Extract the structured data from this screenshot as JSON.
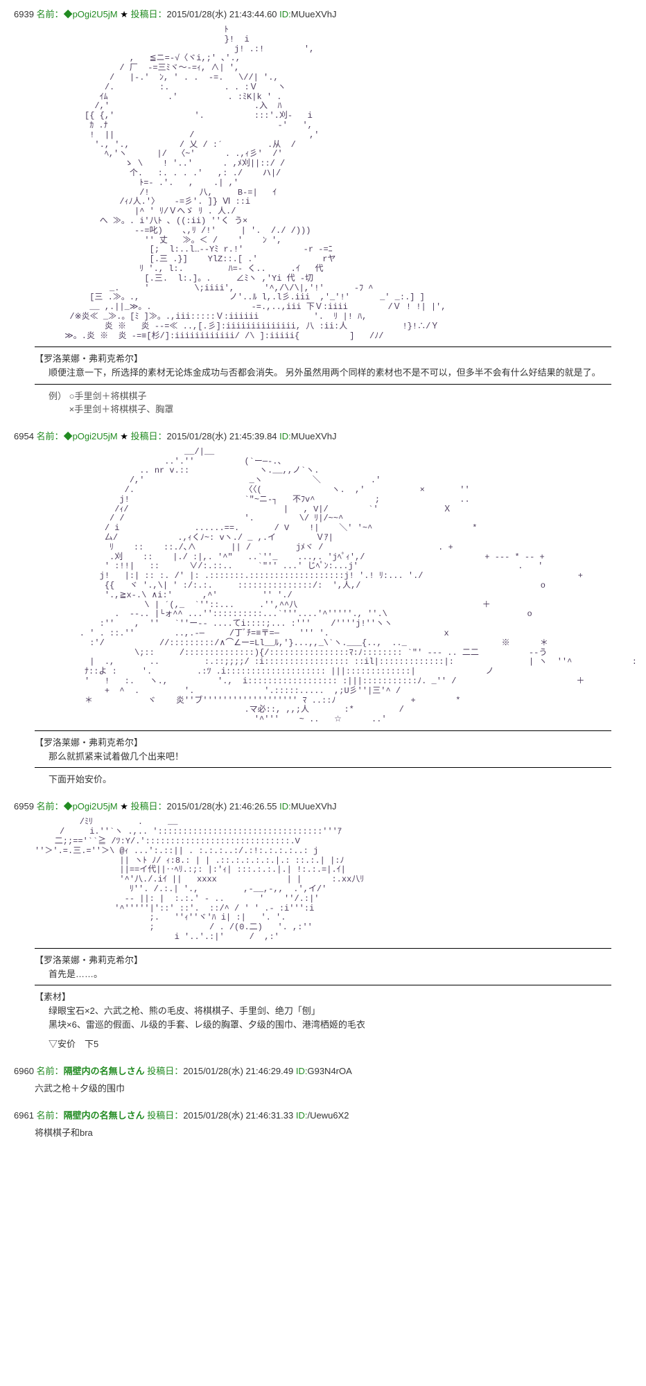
{
  "posts": [
    {
      "no": "6939",
      "name_label": "名前：",
      "trip": "◆pOgi2U5jM",
      "star": "★",
      "date_label": "投稿日：",
      "date": "2015/01/28(水) 21:43:44.60",
      "id_label": "ID:",
      "id": "MUueXVhJ",
      "ascii": "                                      ﾄ\n                                      }!  i\n                                        j! .:!        ',\n                   ,   ≦ニ=-√〈ヾi,;' ､'.,\n                 / 厂  -=三ﾐヾ〜-=ｨ, ∧| ',\n               /   |-.'  ﾝ, ' . .  -=.   \\//| '.,\n              /.         :.           . . :Ｖ    ヽ\n             ｲﾑ            .'          . :ﾐΚ|k ' .\n            /,'                             .入  ﾊ\n          [{ {,'                '.          :::'.刈-   i\n           ｶ .ﾅ                                  -'   ',\n           !  ||               /                       ,'\n            '., '.,          / 乂 / :´         .从  /\n              ﾍ,'ヽ      |/  〈~'      . .,ｨ彡'  /'\n                  ゝ \\    ! '..'      . ,ﾒ刈||::/ /\n                   个.   :. . . .'   ,: ./    ハ|/\n                     ﾄ=- .'.   ,    .| ,'\n                     /!          八,     B-=|   ｲ\n                 /ｨﾉ人.'〉   -=彡'. ]} Ⅵ ::i\n                    |^ ' ﾘ/Ｖへゞ ﾘ . 人./\n             へ ≫。. i'八ﾄ ､ ((:ii) ''く う×\n                    --=叱)    ､,ﾘ /!'     | '.  /./ /)))\n                      '' 丈   ≫。＜ /    '    ﾝ ',\n                       [;  l:..l…--Yﾐ r.!'            -r -=ﾆ\n                       [.三 .}]    YlZ::.[ .'             rヤ\n                     ﾘ '., l:.         ﾊ=- く..     .ｲ   代\n                      [.三.  l:.]。.     ∠ﾐヽ ,'Yi 代 -切\n               _.     '         \\;iiii',      '^,/\\/\\|,'!'      -ﾌ ^\n           [三 .≫。.,                  ノ'..ﾙ l,.l彡.iii  ,'_'!'      _' _:.] ]\n           __ ,.||_≫。.                    -=.,..,iii 下Ｖ:iiii        /Ｖ ! !| |',\n       /※炎≪ _≫.。[ﾐ ]≫。.,iii:::::Ｖ:iiiiii           '.  ﾘ |! ﾊ,\n              炎 ※   炎 --=≪ ..,[.彡]:iiiiiiiiiiiiii, 八 :ii:人           !}!∴/Ｙ\n      ≫。.炎 ※  炎 -=≡[杉/]:iiiiiiiiiiii/ /\\ ]:iiiii{          ]   /ﾉ/",
      "speaker": "【罗洛莱娜・弗莉克希尔】",
      "dialogue": "顺便注意一下，所选择的素材无论炼金成功与否都会消失。\n另外虽然用两个同样的素材也不是不可以，但多半不会有什么好结果的就是了。",
      "example_label": "例）",
      "example": "○手里剑＋将棋棋子\n×手里剑＋将棋棋子、胸罩"
    },
    {
      "no": "6954",
      "name_label": "名前：",
      "trip": "◆pOgi2U5jM",
      "star": "★",
      "date_label": "投稿日：",
      "date": "2015/01/28(水) 21:45:39.84",
      "id_label": "ID:",
      "id": "MUueXVhJ",
      "ascii": "                              __/|__\n                          ..'.''          (`ー─-.、\n                     .. nr v.::              ヽ.__,,ノ`ヽ.\n                   /,'                     _ヽ          ＼          .'\n                  /.                      〈〈(              ヽ.  ,'           ×       ''\n                 j!                       `\"~ニ-┐   不ﾌv^            ;                ..\n                /ｨ/                               |   , V|/        `'             Ｘ\n               / /                        '.         \\/ ﾘ|/~~^\n              / i               ......==.       / V    !|    ＼' '~^                    *\n              厶/            .,ｨくﾉ~: vヽ./ _ ,.イ        Ｖｱ|\n               ﾘ    ::    ::./､∧       || /         jﾒヾ /                       . +\n               .刈    ::    |./ :|,. '^\"   ..`''_    ...,. 'jﾍﾟｨ',/                        + --- * -- +\n              ' :!!|   ::      ∨/:.::..     `\"'' ...' じﾍﾟﾝ:...j'                                .   '\n             j!   |:| :: :. /' |: .:::::::.:::::::::::::::::::j! '.! ﾘ:... './                               +\n              {{   ヾ '.,\\| ' :/:.:.     :::::::::::::::/:  ',人,/                                    o\n              '.,≧x-.\\ ∧i:'      ,^'         '' './\n                      \\ | ´(,_  `''::...     .'',^^八                                     ＋\n                .  --.. |└ォ^^ ...''::::::::::...`'''....'^'''''., ''.\\                            o\n             :''    ,  ''   `''ー-- ....てi::::;... :'''    /''''j!''ヽヽ\n         . ' . ::.''        ..,.-─     /丁ﾞﾁ=≡〒=─    ''' '.                       x\n           :'/           //:::::::::/∧⌒∠ー=Ll__ﾙ,'}...,,_\\`ヽ.___{..,  .._                   ※      ＊\n                    \\;::     /::::::::::::::){/::::::::::::::::ﾏ:ﾉ:::::::: `\"' --- .. 二二          --う\n           |  .,       ..         :.::;;;;/ :i::::::::::::::::: ::il|:::::::::::::|:               | ヽ  ''^            :  *\n          ﾅ::よ :     '.         .:ﾂ .i:::::::::::::::::::: |||:::::::::::::|              ノ\n          '   !   :.   ヽ.,          '.,  i:::::::::::::::::: :|||:::::::::::ﾉ. _'' /                        ＋\n              +  ^  .         '.              '.:::::.....  ,;U彡''|三'^ /\n          ＊           ヾ    炎''ブ''''''''''''''''''' ﾏ ..::ﾉ               +        *\n                                          .マ必::, ,,;人       :*         /\n                                            '^'''    ~ ..   ☆      ..'",
      "speaker": "【罗洛莱娜・弗莉克希尔】",
      "dialogue": "那么就抓紧来试着做几个出来吧！",
      "narration": "下面开始安价。"
    },
    {
      "no": "6959",
      "name_label": "名前：",
      "trip": "◆pOgi2U5jM",
      "star": "★",
      "date_label": "投稿日：",
      "date": "2015/01/28(水) 21:46:26.55",
      "id_label": "ID:",
      "id": "MUueXVhJ",
      "ascii": "         /ﾐﾘ         .     __\n     /     i.''`ヽ .,.. ':::::::::::::::::::::::::::::::::'''ｱ\n    二;;=='``≧ /ﾂ:Y/.':::::::::::::::::::::::::::::.V\n''＞'.=.三.=''＞\\ @ｨ ...':.::|| . :.:.:..:/.:!:.:.:.:..: j\n                 || ヽﾄ ﾉ/ ｨ:8.: | | .::.:.:.:.:.|.: ::.:.| |:ﾉ\n                 ||==イ代||‥ﾍﾘ.:;: |:'ｨ| :::.:.:.|.| !:.:.=|.ｲ|\n                 '^'八./.iｲ ||   xxxx              | |      :.xx八ﾘ\n                   ﾘ''. /.:.| '.,         ,-__,-,,  .',イ/'\n                  -- ||: |  :.:.' - ..       '    ''/.:|'\n                '^'''''|'::' ::'.  ::/^ / ' ' .- :i''':i\n                       ;.   ''ｨ''ヾ'ﾊ i| :|   '. '.\n                       ;           / . /(0.二)   '. ,:''\n                            i '..'.:|'     /  ,:'",
      "speaker": "【罗洛莱娜・弗莉克希尔】",
      "dialogue": "首先是……。",
      "mat_label": "【素材】",
      "mat_list": "绿眼宝石×2、六武之枪、熊の毛皮、将棋棋子、手里剑、绝刀「刨」\n黑块×6、雷巡的假面、ル级的手套、レ级的胸罩、夕级的围巾、港湾栖姬的毛衣",
      "anka": "▽安价　下5"
    },
    {
      "no": "6960",
      "name_label": "名前：",
      "name": "隔壁内の名無しさん",
      "date_label": "投稿日：",
      "date": "2015/01/28(水) 21:46:29.49",
      "id_label": "ID:",
      "id": "G93N4rOA",
      "body": "六武之枪＋夕级的围巾"
    },
    {
      "no": "6961",
      "name_label": "名前：",
      "name": "隔壁内の名無しさん",
      "date_label": "投稿日：",
      "date": "2015/01/28(水) 21:46:31.33",
      "id_label": "ID:",
      "id": "/Uewu6X2",
      "body": "将棋棋子和bra"
    }
  ]
}
